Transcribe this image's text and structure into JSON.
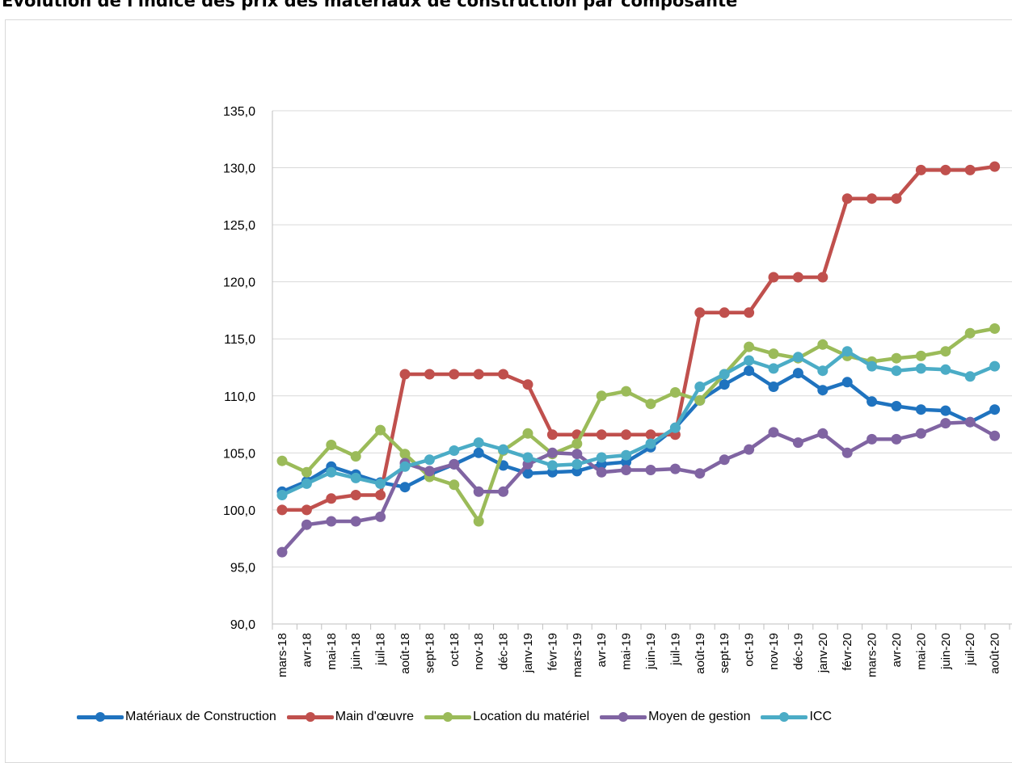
{
  "chart_data": {
    "type": "line",
    "title": "Evolution de l'indice des prix des matériaux de construction par composante",
    "xlabel": "",
    "ylabel": "",
    "ylim": [
      90,
      135
    ],
    "y_ticks": [
      "90,0",
      "95,0",
      "100,0",
      "105,0",
      "110,0",
      "115,0",
      "120,0",
      "125,0",
      "130,0",
      "135,0"
    ],
    "grid": "horizontal",
    "legend_position": "bottom",
    "categories": [
      "mars-18",
      "avr-18",
      "mai-18",
      "juin-18",
      "juil-18",
      "août-18",
      "sept-18",
      "oct-18",
      "nov-18",
      "déc-18",
      "janv-19",
      "févr-19",
      "mars-19",
      "avr-19",
      "mai-19",
      "juin-19",
      "juil-19",
      "août-19",
      "sept-19",
      "oct-19",
      "nov-19",
      "déc-19",
      "janv-20",
      "févr-20",
      "mars-20",
      "avr-20",
      "mai-20",
      "juin-20",
      "juil-20",
      "août-20"
    ],
    "series": [
      {
        "name": "Matériaux de Construction",
        "color": "#1f73bf",
        "values": [
          101.6,
          102.5,
          103.8,
          103.1,
          102.4,
          102.0,
          103.1,
          104.0,
          105.0,
          103.9,
          103.2,
          103.3,
          103.4,
          104.0,
          104.2,
          105.5,
          107.2,
          109.6,
          111.0,
          112.2,
          110.8,
          112.0,
          110.5,
          111.2,
          109.5,
          109.1,
          108.8,
          108.7,
          107.7,
          108.8
        ]
      },
      {
        "name": "Main d'œuvre",
        "color": "#c0504d",
        "values": [
          100.0,
          100.0,
          101.0,
          101.3,
          101.3,
          111.9,
          111.9,
          111.9,
          111.9,
          111.9,
          111.0,
          106.6,
          106.6,
          106.6,
          106.6,
          106.6,
          106.6,
          117.3,
          117.3,
          117.3,
          120.4,
          120.4,
          120.4,
          127.3,
          127.3,
          127.3,
          129.8,
          129.8,
          129.8,
          130.1
        ]
      },
      {
        "name": "Location du matériel",
        "color": "#9bbb59",
        "values": [
          104.3,
          103.3,
          105.7,
          104.7,
          107.0,
          104.9,
          102.9,
          102.2,
          99.0,
          105.2,
          106.7,
          104.9,
          105.8,
          110.0,
          110.4,
          109.3,
          110.3,
          109.6,
          111.9,
          114.3,
          113.7,
          113.3,
          114.5,
          113.5,
          113.0,
          113.3,
          113.5,
          113.9,
          115.5,
          115.9
        ]
      },
      {
        "name": "Moyen de gestion",
        "color": "#8064a2",
        "values": [
          96.3,
          98.7,
          99.0,
          99.0,
          99.4,
          104.1,
          103.4,
          104.0,
          101.6,
          101.6,
          104.0,
          105.0,
          104.9,
          103.3,
          103.5,
          103.5,
          103.6,
          103.2,
          104.4,
          105.3,
          106.8,
          105.9,
          106.7,
          105.0,
          106.2,
          106.2,
          106.7,
          107.6,
          107.7,
          106.5
        ]
      },
      {
        "name": "ICC",
        "color": "#4bacc6",
        "values": [
          101.3,
          102.3,
          103.3,
          102.8,
          102.3,
          103.8,
          104.4,
          105.2,
          105.9,
          105.3,
          104.6,
          103.9,
          104.0,
          104.6,
          104.8,
          105.8,
          107.2,
          110.8,
          111.9,
          113.1,
          112.4,
          113.4,
          112.2,
          113.9,
          112.6,
          112.2,
          112.4,
          112.3,
          111.7,
          112.6
        ]
      }
    ]
  }
}
